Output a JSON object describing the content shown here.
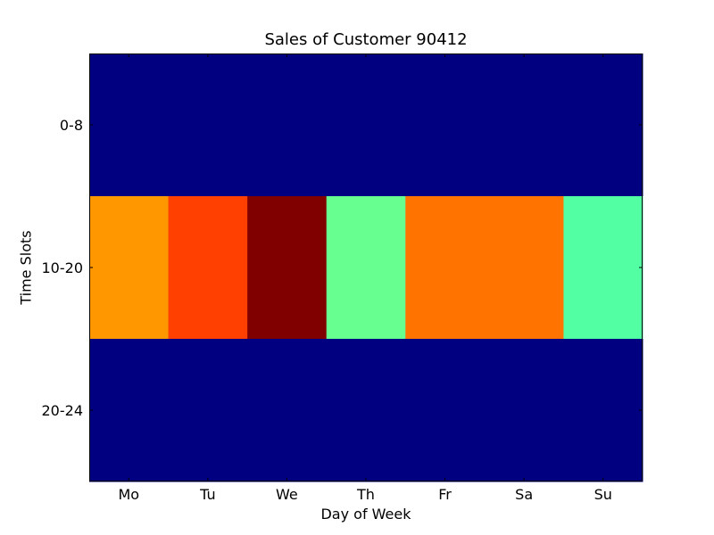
{
  "chart_data": {
    "type": "heatmap",
    "title": "Sales of Customer 90412",
    "xlabel": "Day of Week",
    "ylabel": "Time Slots",
    "x_categories": [
      "Mo",
      "Tu",
      "We",
      "Th",
      "Fr",
      "Sa",
      "Su"
    ],
    "y_categories": [
      "0-8",
      "10-20",
      "20-24"
    ],
    "colormap": "jet",
    "values": [
      [
        0.0,
        0.0,
        0.0,
        0.0,
        0.0,
        0.0,
        0.0
      ],
      [
        0.72,
        0.82,
        1.0,
        0.48,
        0.76,
        0.76,
        0.44
      ],
      [
        0.0,
        0.0,
        0.0,
        0.0,
        0.0,
        0.0,
        0.0
      ]
    ],
    "cell_colors": [
      [
        "#000080",
        "#000080",
        "#000080",
        "#000080",
        "#000080",
        "#000080",
        "#000080"
      ],
      [
        "#ff9800",
        "#ff4000",
        "#800000",
        "#66ff90",
        "#ff7300",
        "#ff7300",
        "#53ffa3"
      ],
      [
        "#000080",
        "#000080",
        "#000080",
        "#000080",
        "#000080",
        "#000080",
        "#000080"
      ]
    ]
  }
}
